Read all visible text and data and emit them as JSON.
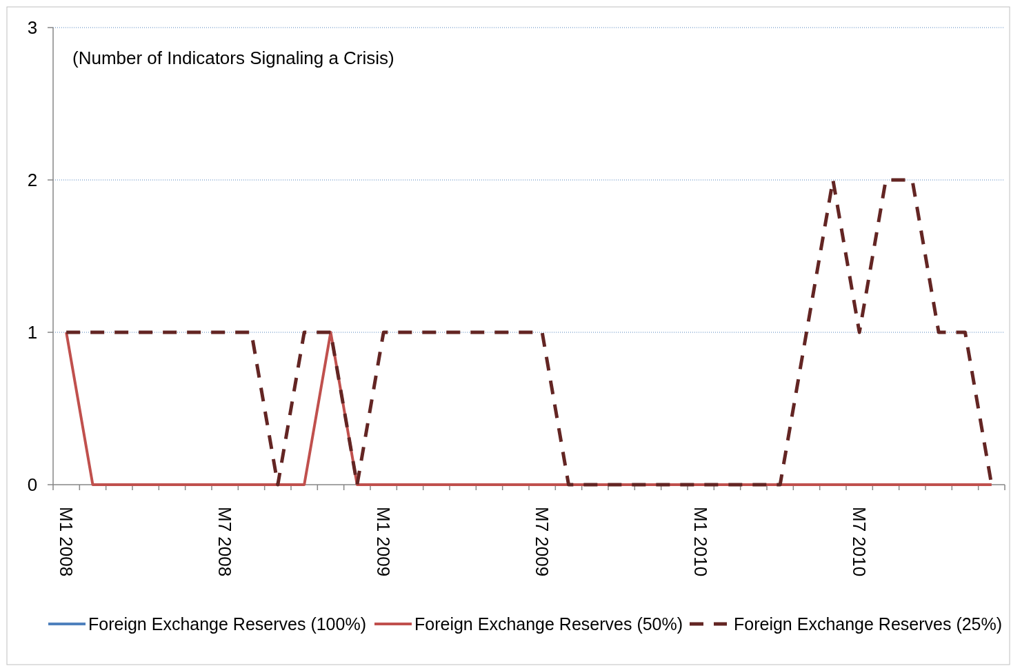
{
  "chart_data": {
    "type": "line",
    "categories": [
      "M1 2008",
      null,
      null,
      null,
      null,
      null,
      "M7 2008",
      null,
      null,
      null,
      null,
      null,
      "M1 2009",
      null,
      null,
      null,
      null,
      null,
      "M7 2009",
      null,
      null,
      null,
      null,
      null,
      "M1 2010",
      null,
      null,
      null,
      null,
      null,
      "M7 2010",
      null,
      null,
      null,
      null,
      null
    ],
    "series": [
      {
        "name": "Foreign Exchange Reserves (100%)",
        "color": "#4f81bd",
        "line_style": "solid",
        "values": [
          null,
          null,
          null,
          null,
          null,
          null,
          null,
          null,
          null,
          null,
          null,
          null,
          null,
          null,
          null,
          null,
          null,
          null,
          null,
          null,
          null,
          null,
          null,
          null,
          null,
          null,
          null,
          null,
          null,
          null,
          null,
          null,
          null,
          null,
          null,
          null
        ]
      },
      {
        "name": "Foreign Exchange Reserves (50%)",
        "color": "#c0504d",
        "line_style": "solid",
        "values": [
          1,
          0,
          0,
          0,
          0,
          0,
          0,
          0,
          0,
          0,
          1,
          0,
          0,
          0,
          0,
          0,
          0,
          0,
          0,
          0,
          0,
          0,
          0,
          0,
          0,
          0,
          0,
          0,
          0,
          0,
          0,
          0,
          0,
          0,
          0,
          0
        ]
      },
      {
        "name": "Foreign Exchange Reserves (25%)",
        "color": "#632523",
        "line_style": "dashed",
        "values": [
          1,
          1,
          1,
          1,
          1,
          1,
          1,
          1,
          0,
          1,
          1,
          0,
          1,
          1,
          1,
          1,
          1,
          1,
          1,
          0,
          0,
          0,
          0,
          0,
          0,
          0,
          0,
          0,
          1,
          2,
          1,
          2,
          2,
          1,
          1,
          0
        ]
      }
    ],
    "ylim": [
      0,
      3
    ],
    "yticks": [
      0,
      1,
      2,
      3
    ],
    "grid": "y",
    "legend": "bottom",
    "annotations": [
      "(Number of Indicators Signaling a Crisis)"
    ]
  }
}
